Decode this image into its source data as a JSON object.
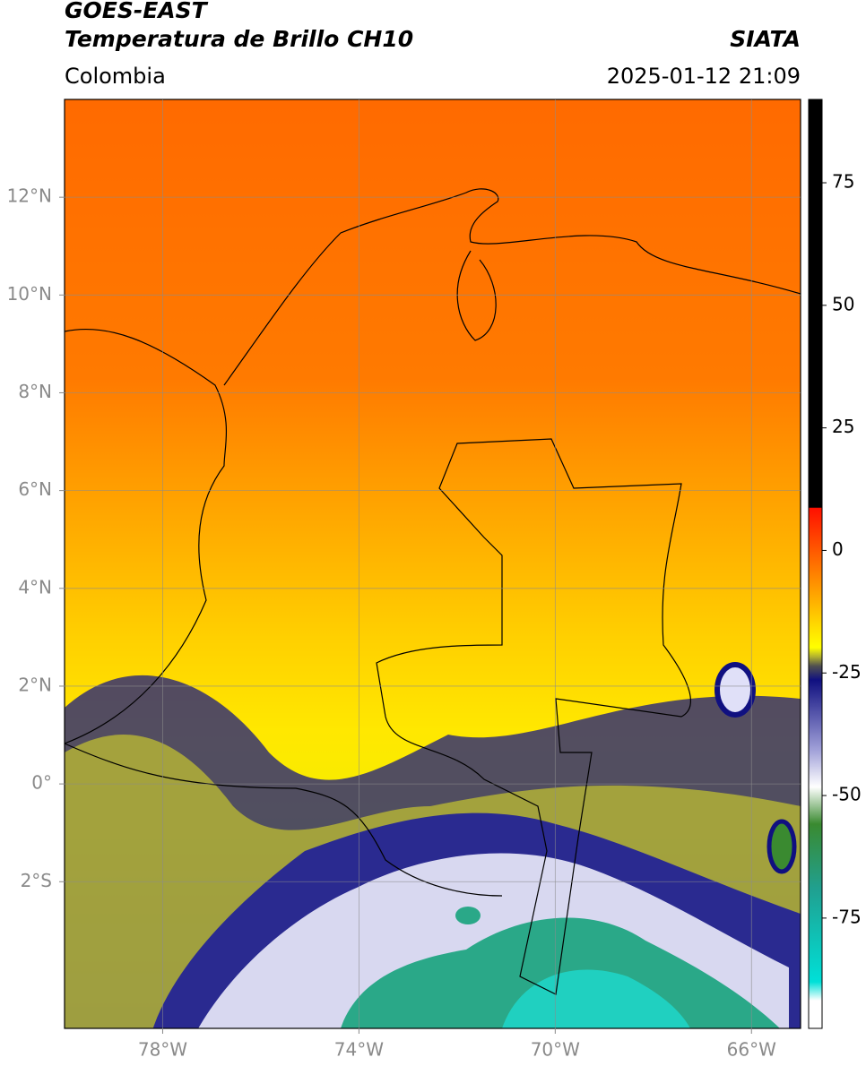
{
  "header": {
    "title_line1": "GOES-EAST",
    "title_line2": "Temperatura de Brillo CH10",
    "region": "Colombia",
    "source": "SIATA",
    "timestamp": "2025-01-12 21:09"
  },
  "map": {
    "lonlim": [
      -80,
      -65
    ],
    "latlim": [
      -5,
      14
    ],
    "lon_ticks": [
      {
        "value": -78,
        "label": "78°W"
      },
      {
        "value": -74,
        "label": "74°W"
      },
      {
        "value": -70,
        "label": "70°W"
      },
      {
        "value": -66,
        "label": "66°W"
      }
    ],
    "lat_ticks": [
      {
        "value": 12,
        "label": "12°N"
      },
      {
        "value": 10,
        "label": "10°N"
      },
      {
        "value": 8,
        "label": "8°N"
      },
      {
        "value": 6,
        "label": "6°N"
      },
      {
        "value": 4,
        "label": "4°N"
      },
      {
        "value": 2,
        "label": "2°N"
      },
      {
        "value": 0,
        "label": "0°"
      },
      {
        "value": -2,
        "label": "2°S"
      }
    ]
  },
  "colorbar": {
    "lim": [
      -97.5,
      92
    ],
    "ticks": [
      75,
      50,
      25,
      0,
      -25,
      -50,
      -75
    ]
  }
}
